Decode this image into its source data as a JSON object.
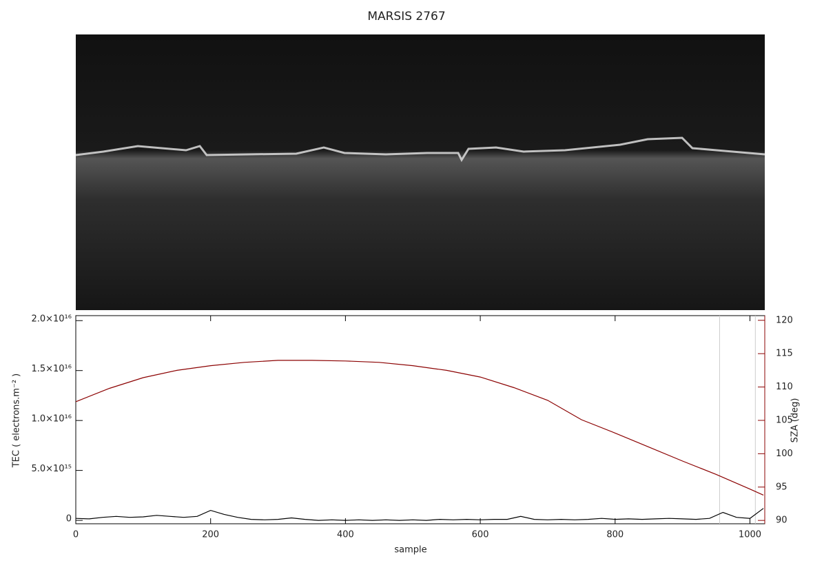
{
  "chart_data": {
    "type": "line",
    "title": "MARSIS 2767",
    "xlabel": "sample",
    "ylabel": "TEC ( electrons.m⁻² )",
    "y2label": "SZA (deg)",
    "y2color": "#8b0000",
    "xlim": [
      0,
      1022
    ],
    "xticks": [
      0,
      200,
      400,
      600,
      800,
      1000
    ],
    "ylim": [
      -340000000000000.0,
      2.05e+16
    ],
    "yticks": [
      0,
      {
        "value": 5000000000000000.0,
        "label": "5.0×10¹⁵"
      },
      {
        "value": 1e+16,
        "label": "1.0×10¹⁶"
      },
      {
        "value": 1.5e+16,
        "label": "1.5×10¹⁶"
      },
      {
        "value": 2e+16,
        "label": "2.0×10¹⁶"
      }
    ],
    "y2lim": [
      89.5,
      120.7
    ],
    "y2ticks": [
      90,
      95,
      100,
      105,
      110,
      115,
      120
    ],
    "vlines": [
      955,
      1008
    ],
    "vline_color": "#cccccc",
    "series": [
      {
        "name": "TEC",
        "color": "#000000",
        "x": [
          0,
          20,
          40,
          60,
          80,
          100,
          120,
          140,
          160,
          180,
          200,
          220,
          240,
          260,
          280,
          300,
          320,
          340,
          360,
          380,
          400,
          420,
          440,
          460,
          480,
          500,
          520,
          540,
          560,
          580,
          600,
          620,
          640,
          660,
          680,
          700,
          720,
          740,
          760,
          780,
          800,
          820,
          840,
          860,
          880,
          900,
          920,
          940,
          960,
          980,
          1000,
          1020
        ],
        "values": [
          200000000000000.0,
          150000000000000.0,
          300000000000000.0,
          400000000000000.0,
          300000000000000.0,
          350000000000000.0,
          500000000000000.0,
          400000000000000.0,
          300000000000000.0,
          400000000000000.0,
          1000000000000000.0,
          600000000000000.0,
          300000000000000.0,
          100000000000000.0,
          50000000000000.0,
          100000000000000.0,
          250000000000000.0,
          100000000000000.0,
          0,
          50000000000000.0,
          0,
          50000000000000.0,
          0,
          50000000000000.0,
          0,
          50000000000000.0,
          0,
          100000000000000.0,
          50000000000000.0,
          100000000000000.0,
          50000000000000.0,
          100000000000000.0,
          100000000000000.0,
          400000000000000.0,
          100000000000000.0,
          50000000000000.0,
          100000000000000.0,
          50000000000000.0,
          100000000000000.0,
          200000000000000.0,
          100000000000000.0,
          150000000000000.0,
          100000000000000.0,
          150000000000000.0,
          200000000000000.0,
          150000000000000.0,
          100000000000000.0,
          200000000000000.0,
          800000000000000.0,
          300000000000000.0,
          200000000000000.0,
          1200000000000000.0
        ]
      },
      {
        "name": "SZA",
        "color": "#8b0000",
        "axis": "y2",
        "x": [
          0,
          50,
          100,
          150,
          200,
          250,
          300,
          350,
          400,
          450,
          500,
          550,
          600,
          650,
          700,
          750,
          800,
          850,
          900,
          950,
          1000,
          1020
        ],
        "values": [
          107.8,
          109.8,
          111.4,
          112.5,
          113.2,
          113.7,
          114.0,
          114.0,
          113.9,
          113.7,
          113.2,
          112.5,
          111.5,
          109.9,
          108.0,
          105.1,
          103.1,
          101.0,
          98.9,
          96.9,
          94.7,
          93.8
        ]
      }
    ]
  }
}
